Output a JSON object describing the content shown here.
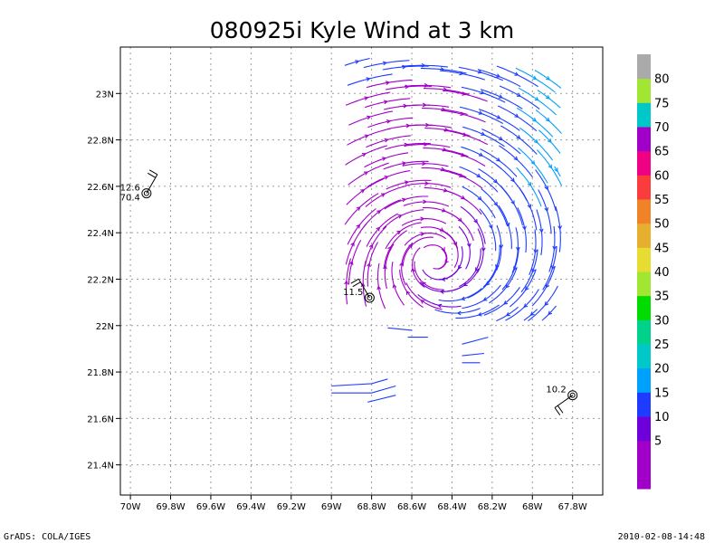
{
  "chart_data": {
    "type": "streamline",
    "title": "080925i Kyle Wind at 3 km",
    "xlabel": "",
    "ylabel": "",
    "xlim": [
      -70.05,
      -67.65
    ],
    "ylim": [
      21.27,
      23.2
    ],
    "x_ticks": [
      {
        "value": -70.0,
        "label": "70W"
      },
      {
        "value": -69.8,
        "label": "69.8W"
      },
      {
        "value": -69.6,
        "label": "69.6W"
      },
      {
        "value": -69.4,
        "label": "69.4W"
      },
      {
        "value": -69.2,
        "label": "69.2W"
      },
      {
        "value": -69.0,
        "label": "69W"
      },
      {
        "value": -68.8,
        "label": "68.8W"
      },
      {
        "value": -68.6,
        "label": "68.6W"
      },
      {
        "value": -68.4,
        "label": "68.4W"
      },
      {
        "value": -68.2,
        "label": "68.2W"
      },
      {
        "value": -68.0,
        "label": "68W"
      },
      {
        "value": -67.8,
        "label": "67.8W"
      }
    ],
    "y_ticks": [
      {
        "value": 21.4,
        "label": "21.4N"
      },
      {
        "value": 21.6,
        "label": "21.6N"
      },
      {
        "value": 21.8,
        "label": "21.8N"
      },
      {
        "value": 22.0,
        "label": "22N"
      },
      {
        "value": 22.2,
        "label": "22.2N"
      },
      {
        "value": 22.4,
        "label": "22.4N"
      },
      {
        "value": 22.6,
        "label": "22.6N"
      },
      {
        "value": 22.8,
        "label": "22.8N"
      },
      {
        "value": 23.0,
        "label": "23N"
      }
    ],
    "grid": true,
    "vortex_center": {
      "lon": -68.53,
      "lat": 22.29
    },
    "colorbar": {
      "placement": "right",
      "levels": [
        {
          "label": "",
          "color": "#a000c8"
        },
        {
          "label": "5",
          "color": "#a000c8"
        },
        {
          "label": "10",
          "color": "#6e00dc"
        },
        {
          "label": "15",
          "color": "#1e3cff"
        },
        {
          "label": "20",
          "color": "#00a0ff"
        },
        {
          "label": "25",
          "color": "#00c8c8"
        },
        {
          "label": "30",
          "color": "#00d28c"
        },
        {
          "label": "35",
          "color": "#00dc00"
        },
        {
          "label": "40",
          "color": "#a0e632"
        },
        {
          "label": "45",
          "color": "#e6dc32"
        },
        {
          "label": "50",
          "color": "#e6af2d"
        },
        {
          "label": "55",
          "color": "#f08228"
        },
        {
          "label": "60",
          "color": "#fa3c3c"
        },
        {
          "label": "65",
          "color": "#f00082"
        },
        {
          "label": "70",
          "color": "#a000c8"
        },
        {
          "label": "75",
          "color": "#00c8c8"
        },
        {
          "label": "80",
          "color": "#a0e632"
        },
        {
          "label": "",
          "color": "#aaaaaa"
        }
      ]
    },
    "stations": [
      {
        "id": "station-west",
        "lon": -69.92,
        "lat": 22.57,
        "value": "12.6",
        "value2": "70.4",
        "barb_dir": 30
      },
      {
        "id": "station-center",
        "lon": -68.81,
        "lat": 22.12,
        "value": "11.5",
        "value2": "",
        "barb_dir": 330
      },
      {
        "id": "station-east",
        "lon": -67.8,
        "lat": 21.7,
        "value": "10.2",
        "value2": "",
        "barb_dir": 235
      }
    ]
  },
  "footer": {
    "left": "GrADS: COLA/IGES",
    "right": "2010-02-08-14:48"
  }
}
